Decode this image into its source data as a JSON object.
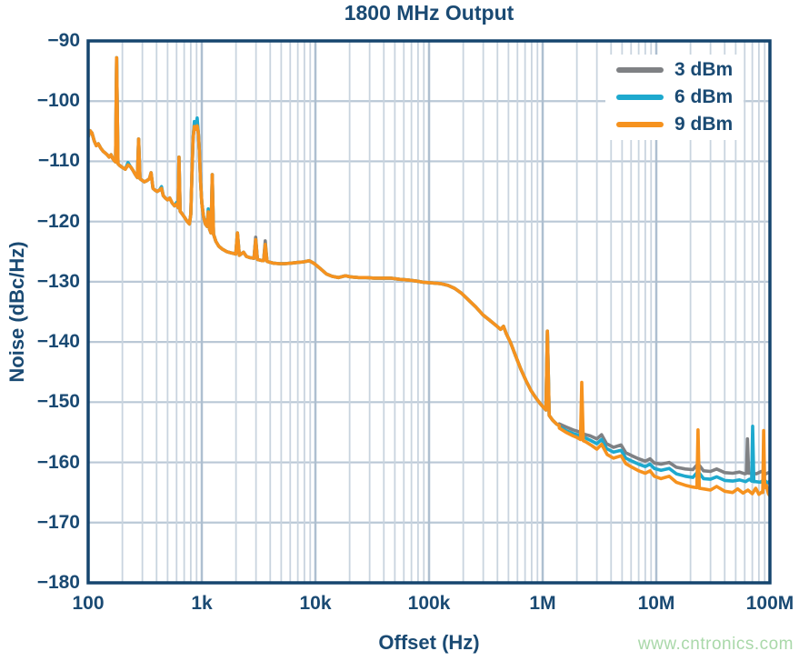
{
  "title": "1800 MHz Output",
  "watermark": "www.cntronics.com",
  "colors": {
    "navy_text": "#1a4a73",
    "axis_border": "#15456e",
    "grid_minor": "#c9d4df",
    "grid_major": "#aebfd0",
    "grid_horizontal": "#bac8d6",
    "series_gray": "#7f8184",
    "series_cyan": "#1ea9ce",
    "series_orange": "#f6921e",
    "watermark_green": "#a9d8a9",
    "background": "#ffffff"
  },
  "legend": {
    "entries": [
      {
        "label": "3 dBm",
        "color": "#7f8184"
      },
      {
        "label": "6 dBm",
        "color": "#1ea9ce"
      },
      {
        "label": "9 dBm",
        "color": "#f6921e"
      }
    ]
  },
  "chart_data": {
    "type": "line",
    "title": "1800 MHz Output",
    "xlabel": "Offset (Hz)",
    "ylabel": "Noise (dBc/Hz)",
    "x_scale": "log",
    "xlim": [
      100,
      100000000
    ],
    "ylim": [
      -180,
      -90
    ],
    "grid": true,
    "legend_position": "top-right",
    "x_ticks": [
      {
        "value": 100,
        "label": "100"
      },
      {
        "value": 1000,
        "label": "1k"
      },
      {
        "value": 10000,
        "label": "10k"
      },
      {
        "value": 100000,
        "label": "100k"
      },
      {
        "value": 1000000,
        "label": "1M"
      },
      {
        "value": 10000000,
        "label": "10M"
      },
      {
        "value": 100000000,
        "label": "100M"
      }
    ],
    "y_ticks": [
      {
        "value": -90,
        "label": "−90"
      },
      {
        "value": -100,
        "label": "−100"
      },
      {
        "value": -110,
        "label": "−110"
      },
      {
        "value": -120,
        "label": "−120"
      },
      {
        "value": -130,
        "label": "−130"
      },
      {
        "value": -140,
        "label": "−140"
      },
      {
        "value": -150,
        "label": "−150"
      },
      {
        "value": -160,
        "label": "−160"
      },
      {
        "value": -170,
        "label": "−170"
      },
      {
        "value": -180,
        "label": "−180"
      }
    ],
    "common_points": [
      [
        100,
        -105.9
      ],
      [
        104,
        -104.9
      ],
      [
        108,
        -105.3
      ],
      [
        113,
        -106.6
      ],
      [
        118,
        -107.4
      ],
      [
        123,
        -107.1
      ],
      [
        129,
        -107.8
      ],
      [
        135,
        -108.3
      ],
      [
        141,
        -108.6
      ],
      [
        147,
        -108.9
      ],
      [
        153,
        -109.3
      ],
      [
        159,
        -108.9
      ],
      [
        164,
        -109.5
      ],
      [
        170,
        -109.9
      ],
      [
        174,
        -110.1
      ],
      [
        178,
        -92.8
      ],
      [
        183,
        -110.4
      ],
      [
        190,
        -110.7
      ],
      [
        200,
        -111.0
      ],
      [
        212,
        -111.3
      ],
      [
        224,
        -110.6
      ],
      [
        236,
        -110.9
      ],
      [
        248,
        -111.5
      ],
      [
        260,
        -112.2
      ],
      [
        271,
        -112.7
      ],
      [
        278,
        -106.3
      ],
      [
        286,
        -112.9
      ],
      [
        296,
        -113.1
      ],
      [
        312,
        -113.4
      ],
      [
        330,
        -113.2
      ],
      [
        346,
        -112.9
      ],
      [
        358,
        -111.9
      ],
      [
        372,
        -114.5
      ],
      [
        388,
        -114.8
      ],
      [
        405,
        -115.0
      ],
      [
        422,
        -114.8
      ],
      [
        442,
        -114.5
      ],
      [
        458,
        -115.7
      ],
      [
        478,
        -116.1
      ],
      [
        500,
        -116.4
      ],
      [
        522,
        -116.1
      ],
      [
        548,
        -116.9
      ],
      [
        575,
        -117.4
      ],
      [
        602,
        -117.1
      ],
      [
        618,
        -117.7
      ],
      [
        630,
        -109.3
      ],
      [
        645,
        -118.3
      ],
      [
        670,
        -118.7
      ],
      [
        705,
        -119.3
      ],
      [
        745,
        -120.0
      ],
      [
        778,
        -120.4
      ],
      [
        800,
        -118.8
      ],
      [
        818,
        -112.5
      ],
      [
        838,
        -106.2
      ],
      [
        860,
        -103.9
      ],
      [
        885,
        -104.5
      ],
      [
        910,
        -103.7
      ],
      [
        932,
        -105.3
      ],
      [
        952,
        -108.2
      ],
      [
        975,
        -113.2
      ],
      [
        1000,
        -116.9
      ],
      [
        1035,
        -119.2
      ],
      [
        1075,
        -120.4
      ],
      [
        1112,
        -120.8
      ],
      [
        1140,
        -118.4
      ],
      [
        1172,
        -121.3
      ],
      [
        1205,
        -121.9
      ],
      [
        1235,
        -112.2
      ],
      [
        1268,
        -122.1
      ],
      [
        1330,
        -123.3
      ],
      [
        1410,
        -124.1
      ],
      [
        1520,
        -124.6
      ],
      [
        1660,
        -125.0
      ],
      [
        1810,
        -125.2
      ],
      [
        1990,
        -125.4
      ],
      [
        2060,
        -121.9
      ],
      [
        2140,
        -125.6
      ],
      [
        2330,
        -125.1
      ],
      [
        2470,
        -125.8
      ],
      [
        2660,
        -126.0
      ],
      [
        2880,
        -126.1
      ],
      [
        2980,
        -123.0
      ],
      [
        3090,
        -126.3
      ],
      [
        3420,
        -126.5
      ],
      [
        3500,
        -126.5
      ],
      [
        3620,
        -123.8
      ],
      [
        3750,
        -126.6
      ],
      [
        3860,
        -126.7
      ],
      [
        4250,
        -126.9
      ],
      [
        4800,
        -127.0
      ],
      [
        5400,
        -127.0
      ],
      [
        6100,
        -126.9
      ],
      [
        6900,
        -126.8
      ],
      [
        7900,
        -126.7
      ],
      [
        8800,
        -126.5
      ],
      [
        9800,
        -127.0
      ],
      [
        11000,
        -127.8
      ],
      [
        12500,
        -128.7
      ],
      [
        14000,
        -129.1
      ],
      [
        16000,
        -129.3
      ],
      [
        18400,
        -129.0
      ],
      [
        20500,
        -129.2
      ],
      [
        24000,
        -129.3
      ],
      [
        28000,
        -129.3
      ],
      [
        33000,
        -129.4
      ],
      [
        39000,
        -129.4
      ],
      [
        46000,
        -129.4
      ],
      [
        55000,
        -129.6
      ],
      [
        65000,
        -129.7
      ],
      [
        78000,
        -129.9
      ],
      [
        91000,
        -130.1
      ],
      [
        107000,
        -130.2
      ],
      [
        126000,
        -130.3
      ],
      [
        147000,
        -130.6
      ],
      [
        168000,
        -131.1
      ],
      [
        193000,
        -131.9
      ],
      [
        222000,
        -133.0
      ],
      [
        258000,
        -134.2
      ],
      [
        298000,
        -135.5
      ],
      [
        342000,
        -136.4
      ],
      [
        386000,
        -137.2
      ],
      [
        426000,
        -137.9
      ],
      [
        452000,
        -137.4
      ],
      [
        478000,
        -138.6
      ],
      [
        524000,
        -140.2
      ],
      [
        578000,
        -142.3
      ],
      [
        642000,
        -144.5
      ],
      [
        712000,
        -146.4
      ],
      [
        792000,
        -148.1
      ],
      [
        872000,
        -149.3
      ],
      [
        948000,
        -150.2
      ],
      [
        1020000,
        -150.9
      ],
      [
        1068000,
        -151.3
      ],
      [
        1100000,
        -138.2
      ],
      [
        1142000,
        -152.2
      ],
      [
        1225000,
        -153.0
      ],
      [
        1320000,
        -153.6
      ],
      [
        1400000,
        -153.9
      ]
    ],
    "series": [
      {
        "name": "3 dBm",
        "color": "#7f8184",
        "overrides": [
          [
            2980,
            -122.6
          ],
          [
            3620,
            -123.2
          ]
        ],
        "tail": [
          [
            1400000,
            -153.6
          ],
          [
            1600000,
            -154.1
          ],
          [
            1850000,
            -154.6
          ],
          [
            2080000,
            -154.9
          ],
          [
            2150000,
            -155.1
          ],
          [
            2210000,
            -153.9
          ],
          [
            2280000,
            -155.3
          ],
          [
            2620000,
            -155.6
          ],
          [
            3000000,
            -156.1
          ],
          [
            3300000,
            -155.4
          ],
          [
            3650000,
            -156.9
          ],
          [
            4200000,
            -157.5
          ],
          [
            4900000,
            -157.1
          ],
          [
            5400000,
            -158.4
          ],
          [
            6100000,
            -158.9
          ],
          [
            7000000,
            -159.4
          ],
          [
            8000000,
            -159.8
          ],
          [
            8800000,
            -159.4
          ],
          [
            9600000,
            -160.1
          ],
          [
            11000000,
            -160.3
          ],
          [
            13000000,
            -160.0
          ],
          [
            15000000,
            -160.8
          ],
          [
            18000000,
            -161.1
          ],
          [
            21000000,
            -161.2
          ],
          [
            23300000,
            -160.2
          ],
          [
            26000000,
            -161.4
          ],
          [
            30000000,
            -161.5
          ],
          [
            34000000,
            -161.1
          ],
          [
            40000000,
            -161.7
          ],
          [
            47000000,
            -161.8
          ],
          [
            54000000,
            -161.6
          ],
          [
            60000000,
            -161.9
          ],
          [
            62200000,
            -161.8
          ],
          [
            63500000,
            -156.1
          ],
          [
            65000000,
            -161.8
          ],
          [
            68000000,
            -161.8
          ],
          [
            76000000,
            -161.9
          ],
          [
            84000000,
            -161.5
          ],
          [
            92000000,
            -161.9
          ],
          [
            100000000,
            -161.6
          ]
        ]
      },
      {
        "name": "6 dBm",
        "color": "#1ea9ce",
        "overrides": [
          [
            224,
            -110.2
          ],
          [
            442,
            -114.2
          ],
          [
            602,
            -116.8
          ],
          [
            860,
            -103.4
          ],
          [
            910,
            -102.8
          ],
          [
            1140,
            -117.9
          ]
        ],
        "tail": [
          [
            1400000,
            -154.1
          ],
          [
            1600000,
            -154.7
          ],
          [
            1850000,
            -155.2
          ],
          [
            2080000,
            -155.5
          ],
          [
            2150000,
            -155.6
          ],
          [
            2210000,
            -152.9
          ],
          [
            2280000,
            -155.8
          ],
          [
            2620000,
            -156.3
          ],
          [
            3000000,
            -156.9
          ],
          [
            3300000,
            -156.2
          ],
          [
            3650000,
            -157.7
          ],
          [
            4200000,
            -158.3
          ],
          [
            4900000,
            -158.0
          ],
          [
            5400000,
            -159.3
          ],
          [
            6100000,
            -159.8
          ],
          [
            7000000,
            -160.3
          ],
          [
            8000000,
            -160.7
          ],
          [
            8800000,
            -160.3
          ],
          [
            9600000,
            -161.0
          ],
          [
            11000000,
            -161.3
          ],
          [
            13000000,
            -161.0
          ],
          [
            15000000,
            -161.9
          ],
          [
            18000000,
            -162.3
          ],
          [
            21000000,
            -162.5
          ],
          [
            23300000,
            -161.5
          ],
          [
            26000000,
            -162.7
          ],
          [
            30000000,
            -162.8
          ],
          [
            34000000,
            -162.4
          ],
          [
            40000000,
            -163.0
          ],
          [
            47000000,
            -163.1
          ],
          [
            54000000,
            -162.9
          ],
          [
            61000000,
            -163.2
          ],
          [
            66000000,
            -162.8
          ],
          [
            69000000,
            -163.1
          ],
          [
            70500000,
            -154.0
          ],
          [
            72200000,
            -163.2
          ],
          [
            75000000,
            -163.2
          ],
          [
            82000000,
            -163.3
          ],
          [
            89000000,
            -162.9
          ],
          [
            95000000,
            -163.4
          ],
          [
            100000000,
            -163.1
          ]
        ]
      },
      {
        "name": "9 dBm",
        "color": "#f6921e",
        "overrides": [
          [
            860,
            -104.2
          ],
          [
            885,
            -104.7
          ],
          [
            910,
            -104.1
          ]
        ],
        "tail": [
          [
            1400000,
            -154.3
          ],
          [
            1600000,
            -155.0
          ],
          [
            1850000,
            -155.6
          ],
          [
            2020000,
            -155.9
          ],
          [
            2150000,
            -156.2
          ],
          [
            2210000,
            -146.7
          ],
          [
            2280000,
            -156.4
          ],
          [
            2400000,
            -156.6
          ],
          [
            2700000,
            -157.2
          ],
          [
            3000000,
            -157.8
          ],
          [
            3300000,
            -157.0
          ],
          [
            3700000,
            -158.7
          ],
          [
            4200000,
            -159.3
          ],
          [
            4900000,
            -158.9
          ],
          [
            5400000,
            -160.2
          ],
          [
            6100000,
            -160.8
          ],
          [
            7000000,
            -161.4
          ],
          [
            8000000,
            -161.8
          ],
          [
            8800000,
            -161.4
          ],
          [
            9600000,
            -162.3
          ],
          [
            11000000,
            -162.7
          ],
          [
            13000000,
            -162.3
          ],
          [
            15000000,
            -163.3
          ],
          [
            18000000,
            -163.8
          ],
          [
            21000000,
            -164.1
          ],
          [
            22800000,
            -164.2
          ],
          [
            23300000,
            -154.6
          ],
          [
            23900000,
            -164.3
          ],
          [
            26000000,
            -164.4
          ],
          [
            30000000,
            -164.6
          ],
          [
            34000000,
            -164.0
          ],
          [
            40000000,
            -164.8
          ],
          [
            47000000,
            -165.0
          ],
          [
            52000000,
            -164.4
          ],
          [
            58000000,
            -165.1
          ],
          [
            64000000,
            -164.6
          ],
          [
            70000000,
            -165.2
          ],
          [
            75000000,
            -164.3
          ],
          [
            80000000,
            -165.3
          ],
          [
            85000000,
            -164.9
          ],
          [
            86500000,
            -165.0
          ],
          [
            88000000,
            -154.7
          ],
          [
            90000000,
            -164.2
          ],
          [
            93000000,
            -163.8
          ],
          [
            97000000,
            -165.2
          ],
          [
            100000000,
            -165.6
          ]
        ]
      }
    ]
  }
}
